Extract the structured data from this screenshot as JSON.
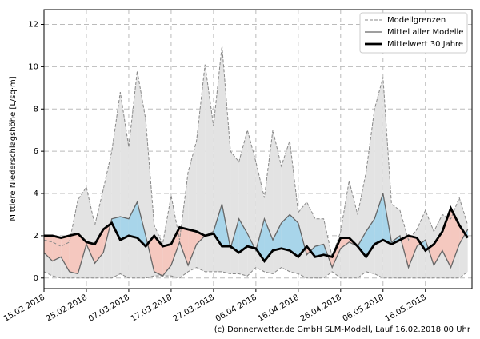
{
  "chart_data": {
    "type": "band-line",
    "ylabel": "Mittlere Niederschlagshöhe [L/sq·m]",
    "footer": "(c) Donnerwetter.de GmbH SLM-Modell, Lauf 16.02.2018 00 Uhr",
    "x": [
      "2018-02-15",
      "2018-02-17",
      "2018-02-19",
      "2018-02-21",
      "2018-02-23",
      "2018-02-25",
      "2018-02-27",
      "2018-03-01",
      "2018-03-03",
      "2018-03-05",
      "2018-03-07",
      "2018-03-09",
      "2018-03-11",
      "2018-03-13",
      "2018-03-15",
      "2018-03-17",
      "2018-03-19",
      "2018-03-21",
      "2018-03-23",
      "2018-03-25",
      "2018-03-27",
      "2018-03-29",
      "2018-03-31",
      "2018-04-02",
      "2018-04-04",
      "2018-04-06",
      "2018-04-08",
      "2018-04-10",
      "2018-04-12",
      "2018-04-14",
      "2018-04-16",
      "2018-04-18",
      "2018-04-20",
      "2018-04-22",
      "2018-04-24",
      "2018-04-26",
      "2018-04-28",
      "2018-04-30",
      "2018-05-02",
      "2018-05-04",
      "2018-05-06",
      "2018-05-08",
      "2018-05-10",
      "2018-05-12",
      "2018-05-14",
      "2018-05-16",
      "2018-05-18",
      "2018-05-20",
      "2018-05-22",
      "2018-05-24",
      "2018-05-26"
    ],
    "series": [
      {
        "name": "Modellgrenzen",
        "color": "#888888",
        "values": [
          1.8,
          1.7,
          1.5,
          1.7,
          3.7,
          4.3,
          2.5,
          4.2,
          6,
          8.8,
          6.2,
          9.8,
          7.5,
          2.5,
          1.6,
          3.9,
          1.8,
          5,
          6.5,
          10.1,
          7.2,
          11,
          6,
          5.5,
          7,
          5.5,
          3.8,
          7,
          5.3,
          6.5,
          3.1,
          3.6,
          2.8,
          2.8,
          1.0,
          2.2,
          4.6,
          3,
          5,
          8,
          9.5,
          3.5,
          3.2,
          1.8,
          2.3,
          3.2,
          2.2,
          3.0,
          2.8,
          3.8,
          2.5
        ],
        "lower": [
          0.3,
          0.1,
          0,
          0,
          0,
          0,
          0,
          0,
          0,
          0.2,
          0,
          0,
          0,
          0.1,
          0.1,
          0.1,
          0,
          0.3,
          0.5,
          0.3,
          0.3,
          0.3,
          0.2,
          0.2,
          0.1,
          0.5,
          0.3,
          0.2,
          0.5,
          0.3,
          0.2,
          0,
          0,
          0,
          0.3,
          0,
          0,
          0,
          0.3,
          0.2,
          0,
          0,
          0,
          0,
          0,
          0,
          0,
          0,
          0,
          0,
          0.3
        ]
      },
      {
        "name": "Mittel aller Modelle",
        "color": "#666666",
        "values": [
          1.2,
          0.8,
          1.0,
          0.3,
          0.2,
          1.6,
          0.7,
          1.2,
          2.8,
          2.9,
          2.8,
          3.6,
          2.0,
          0.3,
          0.1,
          0.6,
          1.7,
          0.6,
          1.6,
          2.0,
          2.2,
          3.5,
          1.4,
          2.8,
          2.1,
          1.3,
          2.8,
          1.8,
          2.6,
          3.0,
          2.6,
          1.1,
          1.5,
          1.6,
          0.5,
          1.4,
          1.7,
          1.5,
          2.2,
          2.8,
          4.0,
          1.7,
          2.0,
          0.5,
          1.5,
          1.8,
          0.6,
          1.3,
          0.5,
          1.6,
          2.3
        ]
      },
      {
        "name": "Mittelwert 30 Jahre",
        "color": "#000000",
        "values": [
          2.0,
          2.0,
          1.9,
          2.0,
          2.1,
          1.7,
          1.6,
          2.3,
          2.6,
          1.8,
          2.0,
          1.9,
          1.5,
          2.0,
          1.5,
          1.6,
          2.4,
          2.3,
          2.2,
          2.0,
          2.1,
          1.5,
          1.5,
          1.2,
          1.5,
          1.4,
          0.8,
          1.3,
          1.4,
          1.3,
          1.0,
          1.5,
          1.0,
          1.1,
          1.0,
          1.9,
          1.9,
          1.5,
          1.0,
          1.6,
          1.8,
          1.6,
          1.8,
          2.0,
          1.9,
          1.3,
          1.6,
          2.2,
          3.3,
          2.5,
          1.9
        ]
      }
    ],
    "band_color": "#e3e3e3",
    "above_color": "#a8d5ea",
    "below_color": "#f5c8bf",
    "xlim": [
      "2018-02-15",
      "2018-05-27"
    ],
    "xticks": [
      {
        "value": "2018-02-15",
        "label": "15.02.2018"
      },
      {
        "value": "2018-02-25",
        "label": "25.02.2018"
      },
      {
        "value": "2018-03-07",
        "label": "07.03.2018"
      },
      {
        "value": "2018-03-17",
        "label": "17.03.2018"
      },
      {
        "value": "2018-03-27",
        "label": "27.03.2018"
      },
      {
        "value": "2018-04-06",
        "label": "06.04.2018"
      },
      {
        "value": "2018-04-16",
        "label": "16.04.2018"
      },
      {
        "value": "2018-04-26",
        "label": "26.04.2018"
      },
      {
        "value": "2018-05-06",
        "label": "06.05.2018"
      },
      {
        "value": "2018-05-16",
        "label": "16.05.2018"
      }
    ],
    "ylim": [
      -0.5,
      12.7
    ],
    "yticks": [
      0,
      2,
      4,
      6,
      8,
      10,
      12
    ],
    "grid": true,
    "legend": "upper right"
  }
}
